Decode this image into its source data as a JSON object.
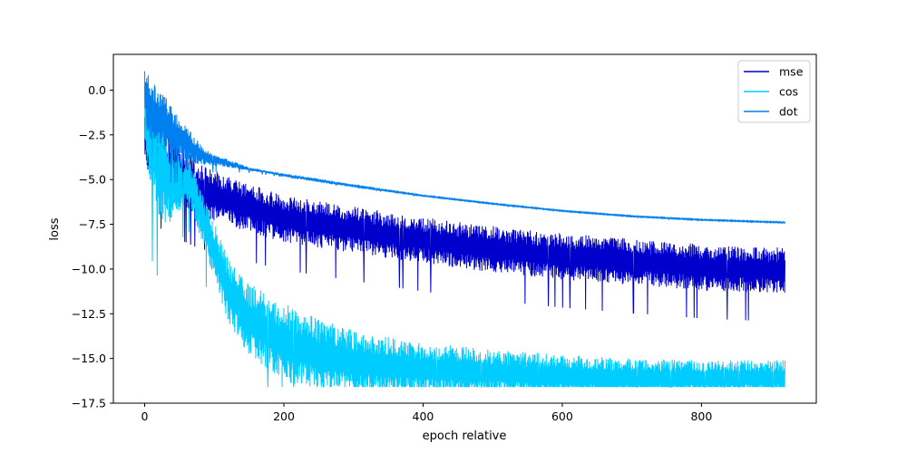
{
  "chart_data": {
    "type": "line",
    "title": "",
    "xlabel": "epoch relative",
    "ylabel": "loss",
    "xlim": [
      -45,
      965
    ],
    "ylim": [
      -17.5,
      2.0
    ],
    "xticks": [
      0,
      200,
      400,
      600,
      800
    ],
    "yticks": [
      0.0,
      -2.5,
      -5.0,
      -7.5,
      -10.0,
      -12.5,
      -15.0,
      -17.5
    ],
    "xtick_labels": [
      "0",
      "200",
      "400",
      "600",
      "800"
    ],
    "ytick_labels": [
      "0.0",
      "−2.5",
      "−5.0",
      "−7.5",
      "−10.0",
      "−12.5",
      "−15.0",
      "−17.5"
    ],
    "grid": false,
    "legend_position": "top-right",
    "series": [
      {
        "name": "mse",
        "color": "#0000cd",
        "x": [
          0,
          5,
          10,
          20,
          30,
          40,
          60,
          80,
          100,
          150,
          200,
          300,
          400,
          500,
          600,
          700,
          800,
          920
        ],
        "center": [
          -2.5,
          -3.2,
          -3.5,
          -3.9,
          -4.2,
          -4.5,
          -5.0,
          -5.6,
          -5.9,
          -6.6,
          -7.2,
          -7.8,
          -8.4,
          -8.9,
          -9.3,
          -9.6,
          -9.9,
          -10.1
        ],
        "spread": [
          1.2,
          1.5,
          1.6,
          1.7,
          1.7,
          1.7,
          1.6,
          1.5,
          1.4,
          1.35,
          1.3,
          1.3,
          1.3,
          1.3,
          1.3,
          1.3,
          1.3,
          1.3
        ]
      },
      {
        "name": "cos",
        "color": "#00ccff",
        "x": [
          0,
          5,
          10,
          20,
          30,
          40,
          50,
          60,
          70,
          80,
          100,
          120,
          150,
          200,
          250,
          300,
          400,
          500,
          600,
          700,
          800,
          920
        ],
        "center": [
          -1.0,
          -2.5,
          -3.3,
          -4.0,
          -4.8,
          -5.3,
          -5.3,
          -5.0,
          -5.6,
          -6.8,
          -9.0,
          -11.2,
          -12.8,
          -14.1,
          -14.8,
          -15.2,
          -15.6,
          -15.8,
          -16.0,
          -16.1,
          -16.1,
          -16.1
        ],
        "spread": [
          1.5,
          2.5,
          2.8,
          3.0,
          3.0,
          2.2,
          1.6,
          1.2,
          1.3,
          1.4,
          1.6,
          1.8,
          2.0,
          2.2,
          2.0,
          1.8,
          1.5,
          1.3,
          1.2,
          1.1,
          1.0,
          1.0
        ]
      },
      {
        "name": "dot",
        "color": "#0080f0",
        "x": [
          0,
          5,
          10,
          20,
          30,
          40,
          60,
          80,
          100,
          150,
          200,
          300,
          400,
          500,
          600,
          700,
          800,
          920
        ],
        "center": [
          -0.3,
          -0.7,
          -1.1,
          -1.5,
          -1.9,
          -2.3,
          -3.0,
          -3.6,
          -3.9,
          -4.4,
          -4.75,
          -5.35,
          -5.9,
          -6.35,
          -6.75,
          -7.05,
          -7.25,
          -7.4
        ],
        "spread": [
          1.5,
          1.8,
          1.8,
          1.7,
          1.5,
          1.3,
          1.0,
          0.6,
          0.3,
          0.1,
          0.05,
          0.04,
          0.03,
          0.03,
          0.03,
          0.03,
          0.03,
          0.03
        ]
      }
    ]
  }
}
